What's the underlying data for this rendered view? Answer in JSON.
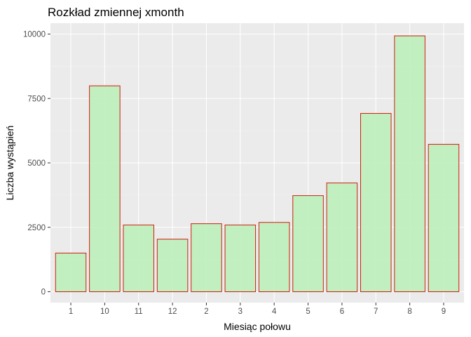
{
  "chart_data": {
    "type": "bar",
    "title": "Rozkład zmiennej xmonth",
    "xlabel": "Miesiąc połowu",
    "ylabel": "Liczba wystąpień",
    "categories": [
      "1",
      "10",
      "11",
      "12",
      "2",
      "3",
      "4",
      "5",
      "6",
      "7",
      "8",
      "9"
    ],
    "values": [
      1500,
      7990,
      2590,
      2040,
      2640,
      2590,
      2690,
      3730,
      4220,
      6920,
      9930,
      5720
    ],
    "ylim": [
      0,
      10500
    ],
    "yticks": [
      0,
      2500,
      5000,
      7500,
      10000
    ],
    "ytick_labels": [
      "0",
      "2500",
      "5000",
      "7500",
      "10000"
    ],
    "grid": true,
    "colors": {
      "bar_fill": "#c0efbd",
      "bar_stroke": "#cc1f0f",
      "panel_bg": "#ebebeb",
      "grid_major": "#ffffff",
      "grid_minor": "#f4f4f4",
      "tick_mark": "#333333"
    }
  }
}
